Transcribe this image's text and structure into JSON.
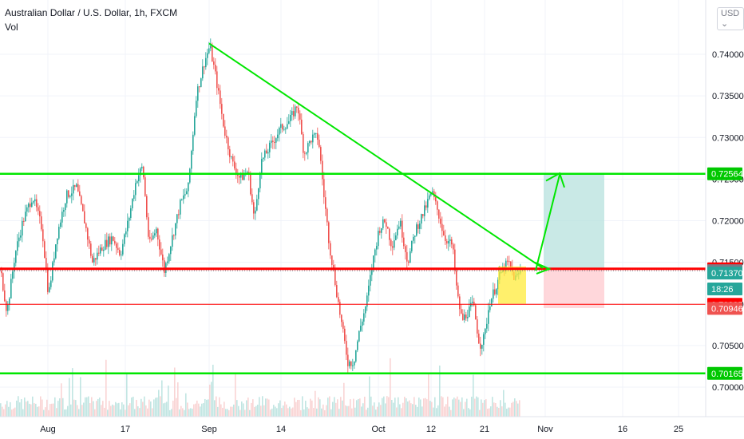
{
  "header": {
    "title": "Australian Dollar / U.S. Dollar, 1h, FXCM",
    "volume_label": "Vol",
    "currency": "USD"
  },
  "chart_data": {
    "type": "candlestick",
    "y_ticks": [
      "0.74000",
      "0.73500",
      "0.73000",
      "0.72500",
      "0.72000",
      "0.71500",
      "0.71000",
      "0.70500",
      "0.70000"
    ],
    "ylim": [
      0.6975,
      0.7455
    ],
    "x_ticks": [
      "Aug",
      "17",
      "Sep",
      "14",
      "Oct",
      "12",
      "21",
      "Nov",
      "16",
      "25"
    ],
    "series": [
      {
        "name": "AUDUSD",
        "points": [
          [
            0,
            0.714
          ],
          [
            8,
            0.709
          ],
          [
            18,
            0.716
          ],
          [
            28,
            0.72
          ],
          [
            40,
            0.723
          ],
          [
            52,
            0.719
          ],
          [
            60,
            0.711
          ],
          [
            70,
            0.718
          ],
          [
            82,
            0.723
          ],
          [
            95,
            0.724
          ],
          [
            105,
            0.72
          ],
          [
            115,
            0.715
          ],
          [
            128,
            0.717
          ],
          [
            140,
            0.718
          ],
          [
            150,
            0.716
          ],
          [
            160,
            0.72
          ],
          [
            170,
            0.725
          ],
          [
            178,
            0.7265
          ],
          [
            186,
            0.717
          ],
          [
            195,
            0.719
          ],
          [
            205,
            0.714
          ],
          [
            215,
            0.718
          ],
          [
            225,
            0.722
          ],
          [
            235,
            0.724
          ],
          [
            245,
            0.735
          ],
          [
            255,
            0.739
          ],
          [
            262,
            0.741
          ],
          [
            270,
            0.737
          ],
          [
            280,
            0.731
          ],
          [
            290,
            0.727
          ],
          [
            300,
            0.725
          ],
          [
            310,
            0.726
          ],
          [
            318,
            0.72
          ],
          [
            326,
            0.727
          ],
          [
            338,
            0.729
          ],
          [
            350,
            0.731
          ],
          [
            362,
            0.732
          ],
          [
            372,
            0.734
          ],
          [
            380,
            0.728
          ],
          [
            390,
            0.73
          ],
          [
            398,
            0.73
          ],
          [
            405,
            0.723
          ],
          [
            412,
            0.717
          ],
          [
            420,
            0.712
          ],
          [
            428,
            0.707
          ],
          [
            435,
            0.703
          ],
          [
            442,
            0.703
          ],
          [
            450,
            0.707
          ],
          [
            458,
            0.71
          ],
          [
            466,
            0.715
          ],
          [
            474,
            0.719
          ],
          [
            482,
            0.72
          ],
          [
            490,
            0.717
          ],
          [
            500,
            0.72
          ],
          [
            510,
            0.715
          ],
          [
            520,
            0.719
          ],
          [
            530,
            0.721
          ],
          [
            540,
            0.7235
          ],
          [
            548,
            0.721
          ],
          [
            556,
            0.718
          ],
          [
            566,
            0.717
          ],
          [
            572,
            0.711
          ],
          [
            578,
            0.708
          ],
          [
            585,
            0.709
          ],
          [
            592,
            0.71
          ],
          [
            600,
            0.705
          ],
          [
            606,
            0.706
          ],
          [
            612,
            0.71
          ],
          [
            620,
            0.712
          ],
          [
            628,
            0.714
          ],
          [
            636,
            0.715
          ],
          [
            644,
            0.713
          ],
          [
            652,
            0.714
          ]
        ]
      }
    ],
    "levels": [
      {
        "name": "0.72564",
        "value": 0.72564,
        "color": "#00e600"
      },
      {
        "name": "0.70165",
        "value": 0.70165,
        "color": "#00e600"
      },
      {
        "name": "0.71422",
        "value": 0.71422,
        "color": "#ff0000"
      },
      {
        "name": "0.70995",
        "value": 0.70995,
        "color": "#ff0000"
      }
    ],
    "trendline": {
      "from": [
        262,
        0.7413
      ],
      "to": [
        680,
        0.7143
      ],
      "color": "#00e600"
    },
    "price_badges": [
      {
        "text": "0.72564",
        "value": 0.72564,
        "color": "#00c800"
      },
      {
        "text": "0.71422",
        "value": 0.71422,
        "color": "#ff0000"
      },
      {
        "text": "0.71399",
        "value": 0.71399,
        "color": "#787b86"
      },
      {
        "text": "0.71370",
        "value": 0.7137,
        "color": "#26a69a"
      },
      {
        "text": "18:26",
        "value": 0.7118,
        "color": "#26a69a"
      },
      {
        "text": "0.70995",
        "value": 0.70995,
        "color": "#ff0000"
      },
      {
        "text": "0.70946",
        "value": 0.70946,
        "color": "#ef5350"
      },
      {
        "text": "0.70165",
        "value": 0.70165,
        "color": "#00c800"
      }
    ],
    "position": {
      "entry": 0.71422,
      "target": 0.72564,
      "stop": 0.7095
    },
    "colors": {
      "up": "#26a69a",
      "down": "#ef5350",
      "grid": "#f0f3fa"
    }
  }
}
